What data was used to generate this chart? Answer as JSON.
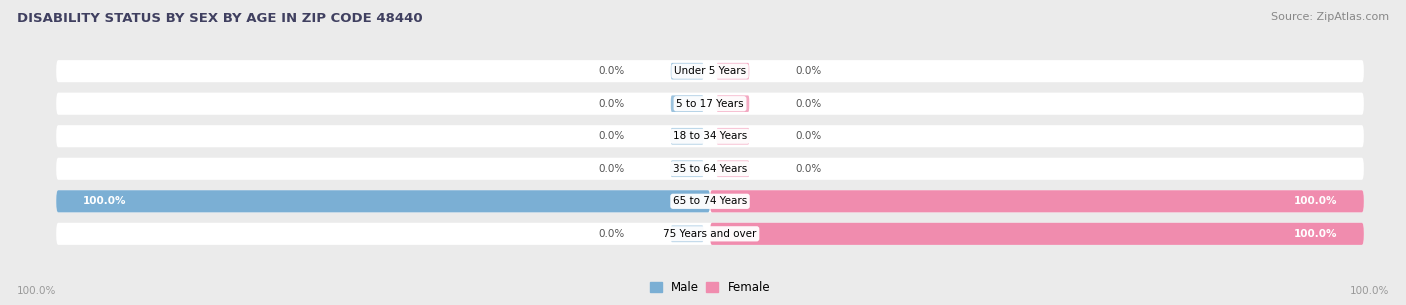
{
  "title": "DISABILITY STATUS BY SEX BY AGE IN ZIP CODE 48440",
  "source": "Source: ZipAtlas.com",
  "categories": [
    "Under 5 Years",
    "5 to 17 Years",
    "18 to 34 Years",
    "35 to 64 Years",
    "65 to 74 Years",
    "75 Years and over"
  ],
  "male_values": [
    0.0,
    0.0,
    0.0,
    0.0,
    100.0,
    0.0
  ],
  "female_values": [
    0.0,
    0.0,
    0.0,
    0.0,
    100.0,
    100.0
  ],
  "male_color": "#7bafd4",
  "female_color": "#f08cae",
  "bg_color": "#ebebeb",
  "bar_bg_color": "#ffffff",
  "title_color": "#404060",
  "source_color": "#888888",
  "label_color": "#555555",
  "white_label_color": "#ffffff",
  "axis_label_color": "#999999",
  "half_axis": 100.0
}
